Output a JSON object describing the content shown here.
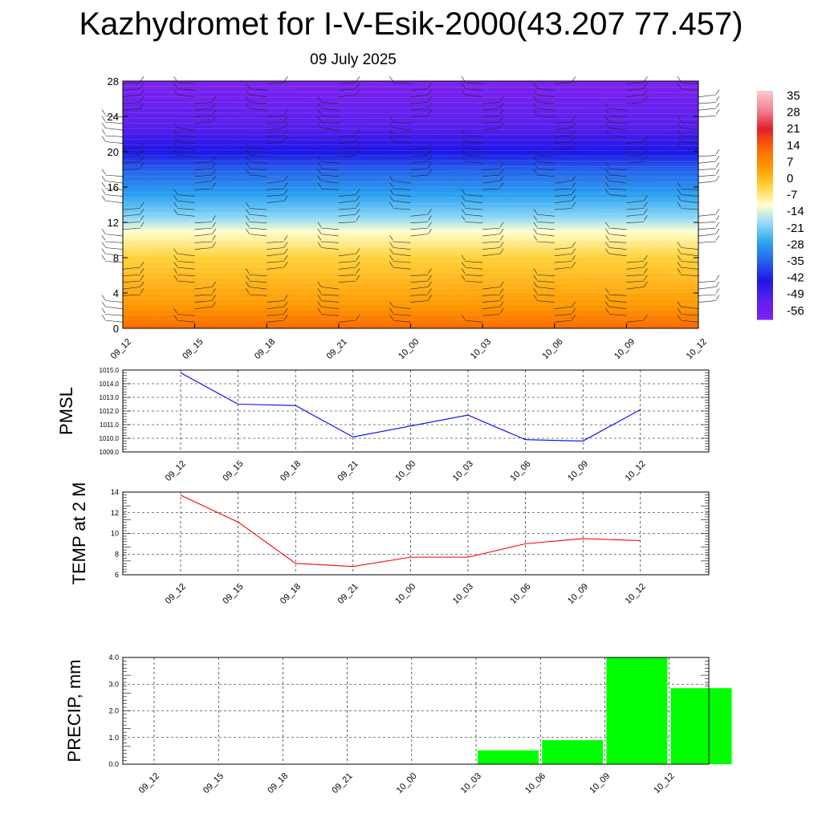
{
  "title": "Kazhydromet for I-V-Esik-2000(43.207 77.457)",
  "subtitle": "09 July 2025",
  "colorbar": {
    "labels": [
      "35",
      "28",
      "21",
      "14",
      "7",
      "0",
      "-7",
      "-14",
      "-21",
      "-28",
      "-35",
      "-42",
      "-49",
      "-56"
    ]
  },
  "chart_data": [
    {
      "type": "heatmap",
      "name": "upper-panel",
      "x": [
        "09_12",
        "09_15",
        "09_18",
        "09_21",
        "10_00",
        "10_03",
        "10_06",
        "10_09",
        "10_12"
      ],
      "yticks": [
        "0",
        "4",
        "8",
        "12",
        "16",
        "20",
        "24",
        "28"
      ],
      "ylim": [
        0,
        28
      ],
      "colormap": [
        "#fb6a00",
        "#fd9800",
        "#ffd23a",
        "#ffffd0",
        "#8fd9f7",
        "#2ca3f0",
        "#2560ea",
        "#1d16e6",
        "#5a20ec",
        "#7f22ef"
      ],
      "cbar_min": -56,
      "cbar_max": 35
    },
    {
      "type": "line",
      "ylabel": "PMSL",
      "categories": [
        "09_12",
        "09_15",
        "09_18",
        "09_21",
        "10_00",
        "10_03",
        "10_06",
        "10_09",
        "10_12"
      ],
      "values": [
        1014.8,
        1012.5,
        1012.4,
        1010.1,
        1010.9,
        1011.7,
        1009.9,
        1009.8,
        1012.1
      ],
      "yticks": [
        "1009.0",
        "1010.0",
        "1011.0",
        "1012.0",
        "1013.0",
        "1014.0",
        "1015.0"
      ],
      "ylim": [
        1009,
        1015
      ],
      "color": "#0000ff",
      "grid": true
    },
    {
      "type": "line",
      "ylabel": "TEMP at 2 M",
      "categories": [
        "09_12",
        "09_15",
        "09_18",
        "09_21",
        "10_00",
        "10_03",
        "10_06",
        "10_09",
        "10_12"
      ],
      "values": [
        13.7,
        11.1,
        7.1,
        6.8,
        7.7,
        7.7,
        9.0,
        9.5,
        9.3
      ],
      "yticks": [
        "6",
        "8",
        "10",
        "12",
        "14"
      ],
      "ylim": [
        6,
        14
      ],
      "color": "#ff0000",
      "grid": true
    },
    {
      "type": "bar",
      "ylabel": "PRECIP, mm",
      "categories": [
        "09_12",
        "09_15",
        "09_18",
        "09_21",
        "10_00",
        "10_03",
        "10_06",
        "10_09",
        "10_12"
      ],
      "values": [
        0,
        0,
        0,
        0,
        0,
        0.52,
        0.9,
        4.0,
        2.85
      ],
      "yticks": [
        "0.0",
        "1.0",
        "2.0",
        "3.0",
        "4.0"
      ],
      "ylim": [
        0,
        4
      ],
      "color": "#00ff00",
      "grid": true
    }
  ]
}
